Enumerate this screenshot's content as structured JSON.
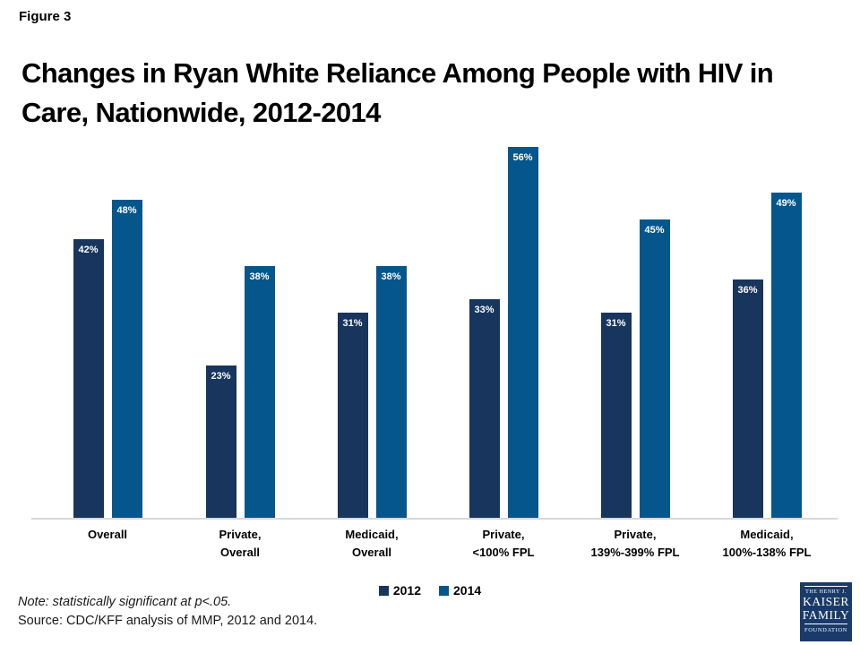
{
  "figure_label": "Figure 3",
  "title": {
    "line1": "Changes in Ryan White Reliance Among People with HIV in",
    "line2": "Care, Nationwide, 2012-2014"
  },
  "chart_data": {
    "type": "bar",
    "categories": [
      "Overall",
      "Private,\nOverall",
      "Medicaid,\nOverall",
      "Private,\n<100% FPL",
      "Private,\n139%-399% FPL",
      "Medicaid,\n100%-138% FPL"
    ],
    "series": [
      {
        "name": "2012",
        "color": "#17355D",
        "values": [
          42,
          23,
          31,
          33,
          31,
          36
        ]
      },
      {
        "name": "2014",
        "color": "#05568C",
        "values": [
          48,
          38,
          38,
          56,
          45,
          49
        ]
      }
    ],
    "value_suffix": "%",
    "ylim": [
      0,
      60
    ],
    "grid": "off",
    "legend_position": "bottom",
    "data_labels": "inside-top"
  },
  "footer": {
    "note": "Note: statistically significant at p<.05.",
    "source": "Source: CDC/KFF analysis of MMP, 2012 and 2014."
  },
  "logo": {
    "line1": "THE HENRY J.",
    "line2": "KAISER",
    "line3": "FAMILY",
    "line4": "FOUNDATION",
    "bg_color": "#1A3A6A"
  },
  "colors": {
    "bar_2012": "#17355D",
    "bar_2014": "#05568C",
    "axis_line": "#D8D8D8",
    "background": "#FFFFFF"
  }
}
